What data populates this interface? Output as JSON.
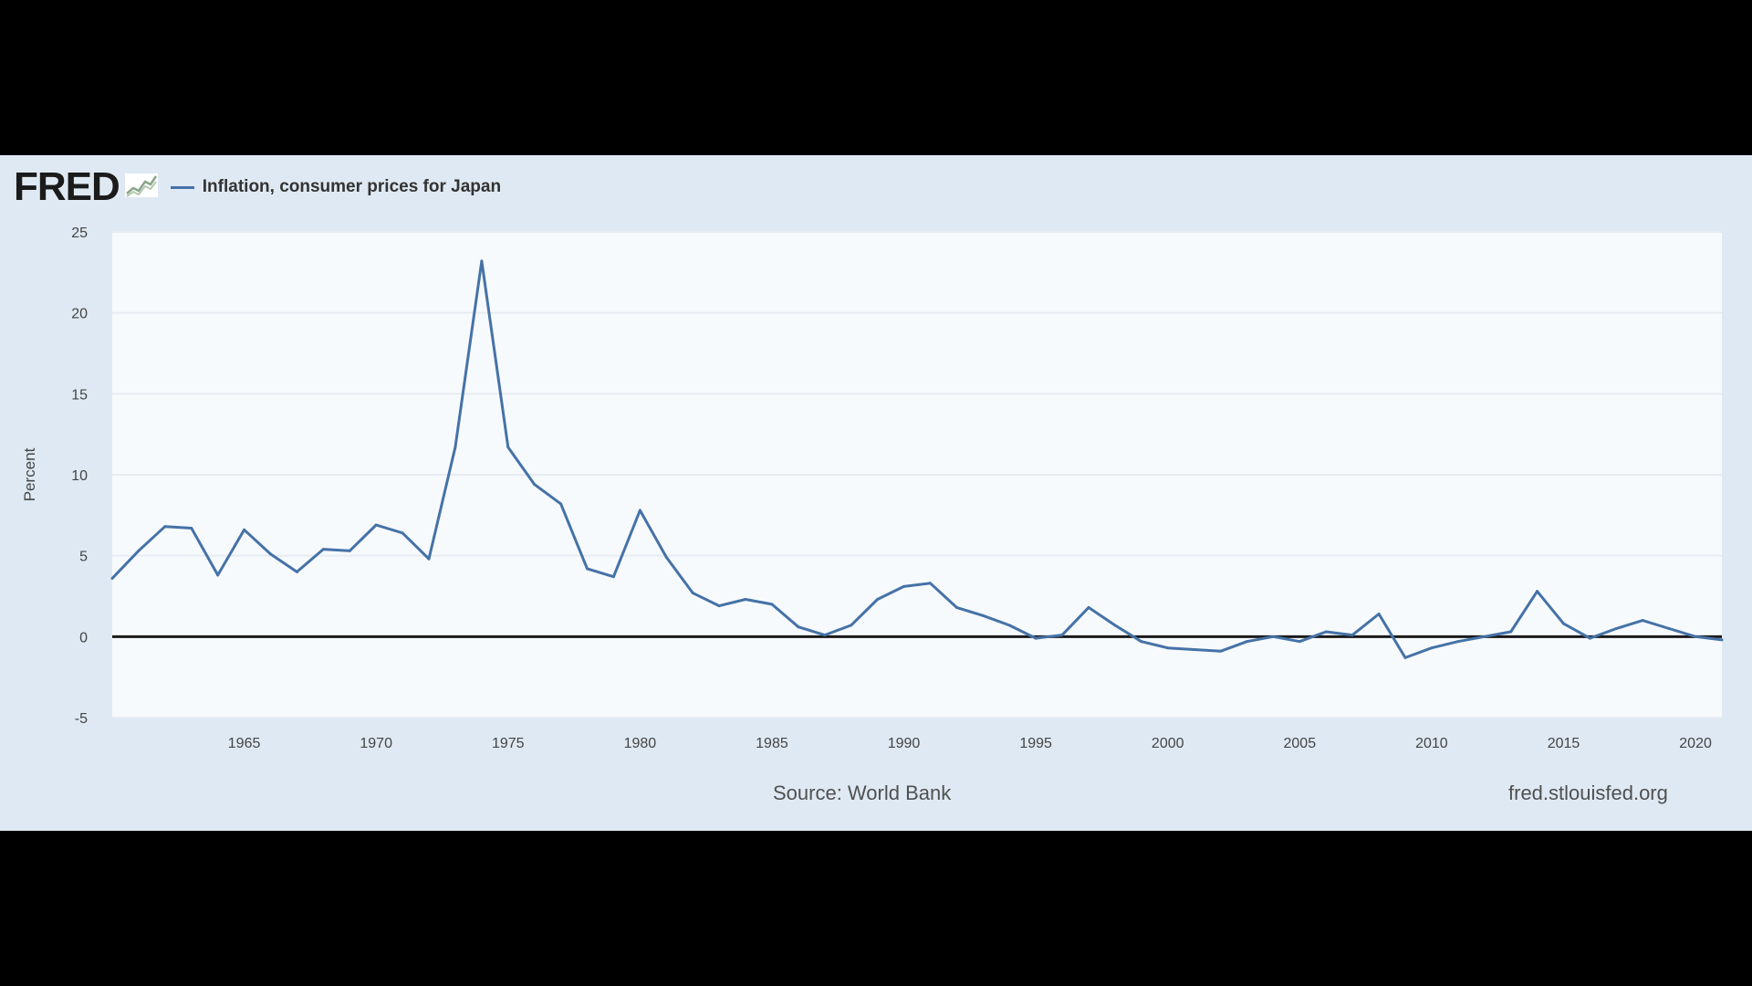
{
  "header": {
    "logo_text": "FRED",
    "legend_label": "Inflation, consumer prices for Japan"
  },
  "footer": {
    "source": "Source: World Bank",
    "url": "fred.stlouisfed.org"
  },
  "colors": {
    "background": "#000000",
    "panel": "#dfe9f3",
    "plot_area": "#f7fafd",
    "series": "#4572a7",
    "zero_line": "#1a1a1a"
  },
  "icons": {
    "logo_graph": "fred-graph-icon"
  },
  "chart_data": {
    "type": "line",
    "title": "",
    "xlabel": "",
    "ylabel": "Percent",
    "ylim": [
      -5,
      25
    ],
    "xlim": [
      1960,
      2021
    ],
    "yticks": [
      -5,
      0,
      5,
      10,
      15,
      20,
      25
    ],
    "xticks": [
      1965,
      1970,
      1975,
      1980,
      1985,
      1990,
      1995,
      2000,
      2005,
      2010,
      2015,
      2020
    ],
    "grid": "horizontal",
    "zero_line": true,
    "series": [
      {
        "name": "Inflation, consumer prices for Japan",
        "x": [
          1960,
          1961,
          1962,
          1963,
          1964,
          1965,
          1966,
          1967,
          1968,
          1969,
          1970,
          1971,
          1972,
          1973,
          1974,
          1975,
          1976,
          1977,
          1978,
          1979,
          1980,
          1981,
          1982,
          1983,
          1984,
          1985,
          1986,
          1987,
          1988,
          1989,
          1990,
          1991,
          1992,
          1993,
          1994,
          1995,
          1996,
          1997,
          1998,
          1999,
          2000,
          2001,
          2002,
          2003,
          2004,
          2005,
          2006,
          2007,
          2008,
          2009,
          2010,
          2011,
          2012,
          2013,
          2014,
          2015,
          2016,
          2017,
          2018,
          2019,
          2020,
          2021
        ],
        "values": [
          3.6,
          5.3,
          6.8,
          6.7,
          3.8,
          6.6,
          5.1,
          4.0,
          5.4,
          5.3,
          6.9,
          6.4,
          4.8,
          11.7,
          23.2,
          11.7,
          9.4,
          8.2,
          4.2,
          3.7,
          7.8,
          4.9,
          2.7,
          1.9,
          2.3,
          2.0,
          0.6,
          0.1,
          0.7,
          2.3,
          3.1,
          3.3,
          1.8,
          1.3,
          0.7,
          -0.1,
          0.1,
          1.8,
          0.7,
          -0.3,
          -0.7,
          -0.8,
          -0.9,
          -0.3,
          0.0,
          -0.3,
          0.3,
          0.1,
          1.4,
          -1.3,
          -0.7,
          -0.3,
          0.0,
          0.3,
          2.8,
          0.8,
          -0.1,
          0.5,
          1.0,
          0.5,
          0.0,
          -0.2
        ]
      }
    ]
  }
}
